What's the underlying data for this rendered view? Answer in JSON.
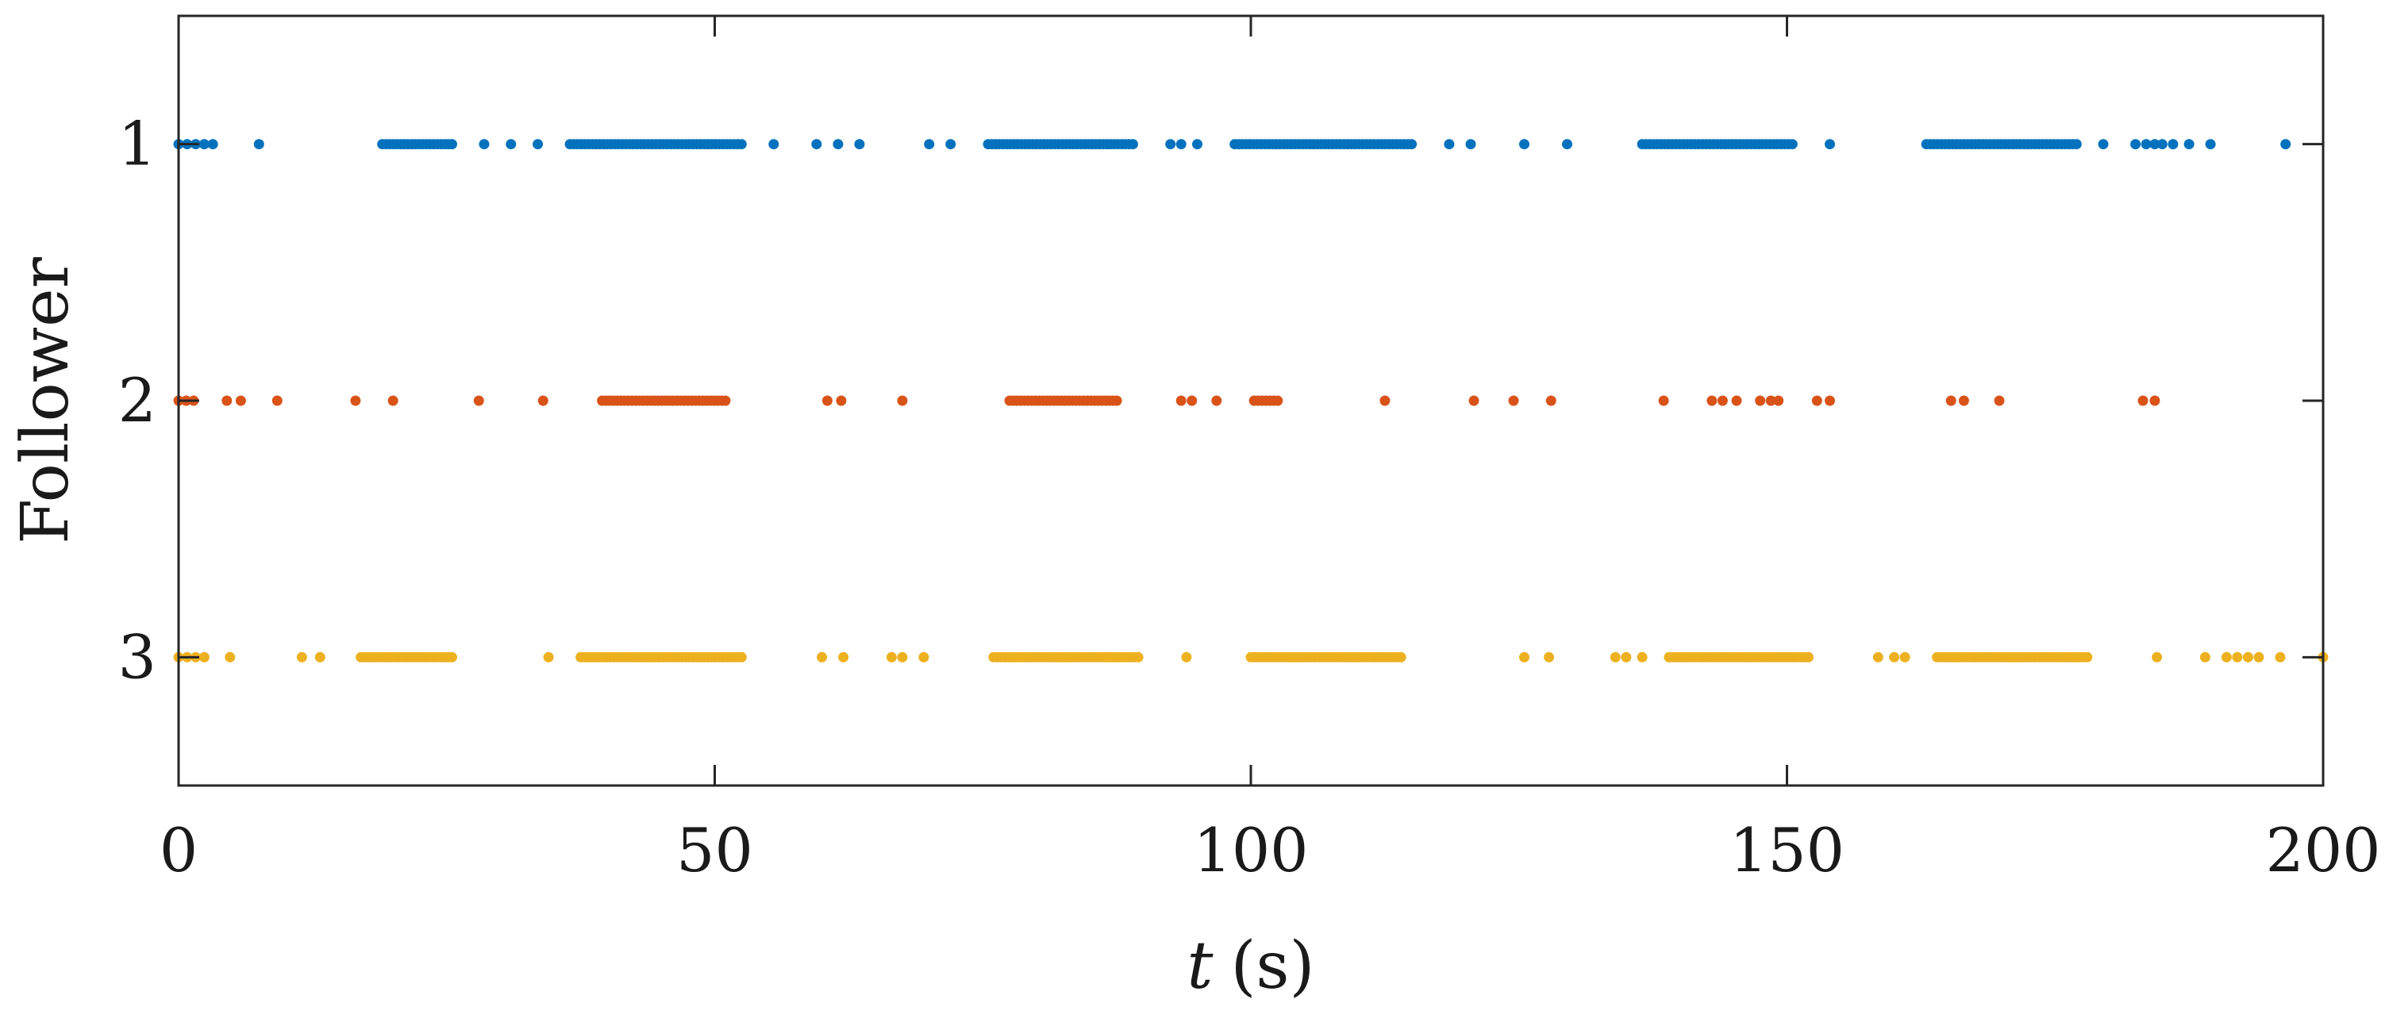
{
  "chart_data": {
    "type": "scatter",
    "xlabel_var": "t",
    "xlabel_unit": "(s)",
    "ylabel": "Follower",
    "xlim": [
      0,
      200
    ],
    "ylim": [
      0.5,
      3.5
    ],
    "y_reversed": true,
    "xticks": [
      0,
      50,
      100,
      150,
      200
    ],
    "yticks": [
      1,
      2,
      3
    ],
    "grid": false,
    "legend": "none",
    "series": [
      {
        "y": 1,
        "color": "#0072BD",
        "points": [
          0,
          0.8,
          1.6,
          2.4,
          3.2,
          7.5
        ],
        "runs": [
          [
            19,
            25.5
          ],
          [
            36.5,
            52.5
          ],
          [
            75.5,
            89
          ],
          [
            98.5,
            115
          ],
          [
            136.5,
            150.5
          ],
          [
            163,
            177
          ]
        ],
        "singles": [
          28.5,
          31,
          33.5,
          55.5,
          59.5,
          61.5,
          63.5,
          70,
          72,
          92.5,
          93.5,
          95,
          118.5,
          120.5,
          125.5,
          129.5,
          154,
          179.5,
          182.5,
          183.5,
          184.3,
          185,
          186,
          187.5,
          189.5,
          196.5
        ]
      },
      {
        "y": 2,
        "color": "#D95319",
        "points": [
          0,
          0.7,
          1.4,
          4.5,
          5.8,
          9.2
        ],
        "runs": [
          [
            39.5,
            51
          ],
          [
            77.5,
            87.5
          ],
          [
            100.3,
            102.5
          ]
        ],
        "singles": [
          16.5,
          20,
          28,
          34,
          60.5,
          61.8,
          67.5,
          93.5,
          94.5,
          96.8,
          112.5,
          120.8,
          124.5,
          128,
          138.5,
          143,
          144,
          145.3,
          147.5,
          148.5,
          149.2,
          152.8,
          154,
          165.3,
          166.5,
          169.8,
          183.2,
          184.3
        ]
      },
      {
        "y": 3,
        "color": "#EDB120",
        "points": [
          0,
          0.8,
          1.6,
          2.4,
          4.8
        ],
        "runs": [
          [
            17,
            25.5
          ],
          [
            37.5,
            52.5
          ],
          [
            76,
            89.5
          ],
          [
            100,
            114
          ],
          [
            139,
            152
          ],
          [
            164,
            178
          ]
        ],
        "singles": [
          11.5,
          13.2,
          34.5,
          60,
          62,
          66.5,
          67.5,
          69.5,
          94,
          125.5,
          127.8,
          134,
          135,
          136.5,
          158.5,
          160,
          161,
          184.5,
          189,
          191,
          192,
          193,
          194,
          196,
          200
        ]
      }
    ]
  }
}
